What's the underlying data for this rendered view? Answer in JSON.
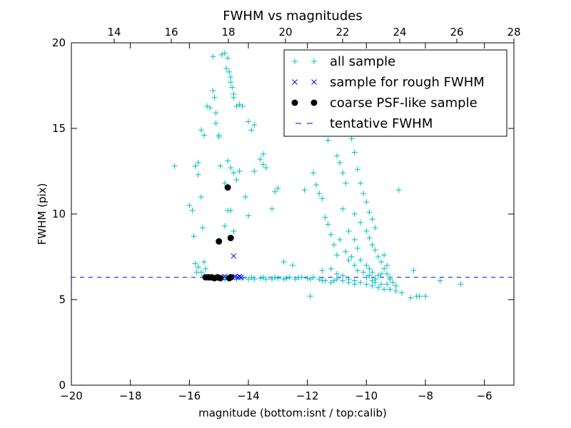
{
  "chart_data": {
    "type": "scatter",
    "title": "FWHM vs magnitudes",
    "xlabel": "magnitude (bottom:isnt / top:calib)",
    "ylabel": "FWHM (pix)",
    "xlim": [
      -20,
      -5
    ],
    "ylim": [
      0,
      20
    ],
    "x_ticks": [
      "−20",
      "−18",
      "−16",
      "−14",
      "−12",
      "−10",
      "−8",
      "−6"
    ],
    "y_ticks": [
      "0",
      "5",
      "10",
      "15",
      "20"
    ],
    "top_axis": {
      "xlim": [
        12.5,
        28
      ],
      "ticks": [
        "14",
        "16",
        "18",
        "20",
        "22",
        "24",
        "26",
        "28"
      ]
    },
    "grid": false,
    "legend_position": "top-right",
    "colors": {
      "all": "#00bfbf",
      "rough": "#0000ff",
      "coarse": "#000000",
      "tentative": "#0000ff"
    },
    "tentative_fwhm": 6.3,
    "series": [
      {
        "name": "all sample",
        "marker": "plus",
        "points": [
          [
            -16.5,
            12.8
          ],
          [
            -16.0,
            10.5
          ],
          [
            -15.9,
            10.2
          ],
          [
            -15.85,
            8.7
          ],
          [
            -15.8,
            7.1
          ],
          [
            -15.75,
            6.6
          ],
          [
            -15.7,
            6.9
          ],
          [
            -15.6,
            6.6
          ],
          [
            -15.5,
            6.4
          ],
          [
            -15.4,
            6.3
          ],
          [
            -15.8,
            12.8
          ],
          [
            -15.7,
            12.3
          ],
          [
            -15.7,
            13.0
          ],
          [
            -15.6,
            14.9
          ],
          [
            -15.5,
            14.6
          ],
          [
            -15.6,
            11.0
          ],
          [
            -15.55,
            9.2
          ],
          [
            -15.5,
            7.2
          ],
          [
            -15.45,
            6.8
          ],
          [
            -15.4,
            16.3
          ],
          [
            -15.3,
            16.2
          ],
          [
            -15.2,
            19.2
          ],
          [
            -15.2,
            17.2
          ],
          [
            -15.15,
            16.8
          ],
          [
            -15.1,
            15.9
          ],
          [
            -15.1,
            15.3
          ],
          [
            -15.0,
            14.6
          ],
          [
            -15.0,
            14.5
          ],
          [
            -14.95,
            12.8
          ],
          [
            -14.9,
            19.3
          ],
          [
            -14.8,
            19.4
          ],
          [
            -14.7,
            19.1
          ],
          [
            -14.75,
            18.5
          ],
          [
            -14.65,
            18.3
          ],
          [
            -14.6,
            18.0
          ],
          [
            -14.6,
            17.7
          ],
          [
            -14.55,
            17.4
          ],
          [
            -14.5,
            17.0
          ],
          [
            -14.5,
            16.8
          ],
          [
            -14.4,
            16.3
          ],
          [
            -14.3,
            16.4
          ],
          [
            -14.2,
            16.3
          ],
          [
            -14.7,
            13.1
          ],
          [
            -14.6,
            12.7
          ],
          [
            -14.5,
            12.4
          ],
          [
            -14.8,
            11.8
          ],
          [
            -14.7,
            10.2
          ],
          [
            -14.6,
            10.2
          ],
          [
            -14.8,
            9.3
          ],
          [
            -14.5,
            9.0
          ],
          [
            -14.4,
            12.0
          ],
          [
            -14.3,
            12.5
          ],
          [
            -14.0,
            15.4
          ],
          [
            -13.9,
            14.9
          ],
          [
            -13.8,
            12.5
          ],
          [
            -13.6,
            13.2
          ],
          [
            -13.5,
            12.9
          ],
          [
            -13.4,
            12.7
          ],
          [
            -14.1,
            11.0
          ],
          [
            -14.0,
            9.9
          ],
          [
            -13.8,
            15.2
          ],
          [
            -13.5,
            13.5
          ],
          [
            -13.2,
            10.3
          ],
          [
            -13.1,
            11.3
          ],
          [
            -13.0,
            11.5
          ],
          [
            -12.8,
            7.2
          ],
          [
            -12.5,
            7.0
          ],
          [
            -12.1,
            11.4
          ],
          [
            -11.9,
            5.2
          ],
          [
            -11.5,
            6.7
          ],
          [
            -11.8,
            12.4
          ],
          [
            -11.7,
            11.7
          ],
          [
            -11.6,
            11.2
          ],
          [
            -11.5,
            10.9
          ],
          [
            -11.4,
            9.8
          ],
          [
            -11.3,
            9.4
          ],
          [
            -11.2,
            8.8
          ],
          [
            -11.1,
            8.2
          ],
          [
            -11.0,
            7.6
          ],
          [
            -11.5,
            14.8
          ],
          [
            -11.3,
            14.3
          ],
          [
            -11.0,
            13.4
          ],
          [
            -10.9,
            13.0
          ],
          [
            -10.8,
            12.4
          ],
          [
            -10.7,
            11.8
          ],
          [
            -10.8,
            17.5
          ],
          [
            -10.9,
            16.8
          ],
          [
            -10.7,
            16.2
          ],
          [
            -10.6,
            15.6
          ],
          [
            -10.5,
            15.0
          ],
          [
            -10.5,
            14.4
          ],
          [
            -10.4,
            13.6
          ],
          [
            -10.3,
            12.6
          ],
          [
            -10.2,
            11.8
          ],
          [
            -10.1,
            11.2
          ],
          [
            -10.0,
            10.7
          ],
          [
            -9.9,
            10.1
          ],
          [
            -9.8,
            9.7
          ],
          [
            -9.7,
            9.2
          ],
          [
            -10.4,
            10.0
          ],
          [
            -10.2,
            9.5
          ],
          [
            -10.0,
            9.0
          ],
          [
            -9.9,
            8.6
          ],
          [
            -9.8,
            8.2
          ],
          [
            -9.7,
            7.9
          ],
          [
            -9.6,
            7.5
          ],
          [
            -9.5,
            7.2
          ],
          [
            -9.4,
            6.8
          ],
          [
            -9.3,
            6.5
          ],
          [
            -9.2,
            6.2
          ],
          [
            -10.8,
            10.3
          ],
          [
            -10.6,
            9.0
          ],
          [
            -10.4,
            8.5
          ],
          [
            -10.3,
            8.0
          ],
          [
            -10.5,
            7.5
          ],
          [
            -10.2,
            7.3
          ],
          [
            -10.0,
            7.0
          ],
          [
            -9.9,
            6.8
          ],
          [
            -9.8,
            6.6
          ],
          [
            -9.6,
            6.4
          ],
          [
            -10.9,
            8.5
          ],
          [
            -10.7,
            7.8
          ],
          [
            -10.6,
            7.3
          ],
          [
            -10.4,
            7.0
          ],
          [
            -10.3,
            6.7
          ],
          [
            -10.1,
            6.6
          ],
          [
            -10.0,
            6.3
          ],
          [
            -9.8,
            6.1
          ],
          [
            -9.7,
            6.0
          ],
          [
            -9.5,
            5.9
          ],
          [
            -11.2,
            6.8
          ],
          [
            -11.0,
            6.5
          ],
          [
            -10.8,
            6.4
          ],
          [
            -10.6,
            6.2
          ],
          [
            -10.4,
            6.1
          ],
          [
            -10.2,
            6.0
          ],
          [
            -10.0,
            5.9
          ],
          [
            -9.8,
            5.8
          ],
          [
            -9.6,
            5.7
          ],
          [
            -9.4,
            5.6
          ],
          [
            -9.2,
            5.6
          ],
          [
            -9.0,
            5.5
          ],
          [
            -8.8,
            5.4
          ],
          [
            -8.5,
            5.1
          ],
          [
            -8.3,
            5.2
          ],
          [
            -8.2,
            5.2
          ],
          [
            -8.0,
            5.2
          ],
          [
            -8.4,
            6.7
          ],
          [
            -7.5,
            6.1
          ],
          [
            -6.8,
            5.9
          ],
          [
            -8.9,
            11.4
          ],
          [
            -9.4,
            7.6
          ],
          [
            -9.3,
            7.0
          ],
          [
            -9.2,
            6.3
          ],
          [
            -9.1,
            6.0
          ],
          [
            -9.0,
            5.8
          ],
          [
            -9.3,
            5.9
          ],
          [
            -9.5,
            6.5
          ],
          [
            -9.7,
            6.2
          ],
          [
            -9.9,
            6.4
          ],
          [
            -14.2,
            6.25
          ],
          [
            -14.0,
            6.2
          ],
          [
            -13.8,
            6.2
          ],
          [
            -13.6,
            6.25
          ],
          [
            -13.4,
            6.2
          ],
          [
            -13.2,
            6.2
          ],
          [
            -13.0,
            6.25
          ],
          [
            -12.8,
            6.2
          ],
          [
            -12.6,
            6.3
          ],
          [
            -12.4,
            6.2
          ],
          [
            -12.2,
            6.3
          ],
          [
            -12.0,
            6.25
          ],
          [
            -11.8,
            6.3
          ],
          [
            -11.6,
            6.2
          ],
          [
            -11.4,
            6.1
          ],
          [
            -11.2,
            6.0
          ],
          [
            -11.0,
            6.2
          ],
          [
            -10.8,
            6.1
          ],
          [
            -10.6,
            6.0
          ],
          [
            -10.4,
            5.9
          ],
          [
            -14.6,
            6.3
          ],
          [
            -14.4,
            6.2
          ],
          [
            -13.9,
            6.3
          ],
          [
            -13.5,
            6.3
          ],
          [
            -13.1,
            6.3
          ],
          [
            -12.7,
            6.25
          ],
          [
            -12.3,
            6.3
          ],
          [
            -11.9,
            6.2
          ],
          [
            -11.5,
            6.1
          ],
          [
            -11.1,
            6.1
          ],
          [
            -15.3,
            6.25
          ],
          [
            -15.2,
            6.3
          ],
          [
            -15.0,
            6.25
          ],
          [
            -14.9,
            6.3
          ],
          [
            -14.8,
            6.2
          ]
        ]
      },
      {
        "name": "sample for rough FWHM",
        "marker": "x",
        "points": [
          [
            -14.5,
            7.55
          ],
          [
            -15.3,
            6.3
          ],
          [
            -15.1,
            6.3
          ],
          [
            -14.9,
            6.3
          ],
          [
            -14.8,
            6.35
          ],
          [
            -14.7,
            6.3
          ],
          [
            -14.55,
            6.3
          ],
          [
            -14.45,
            6.35
          ],
          [
            -14.35,
            6.3
          ],
          [
            -14.3,
            6.35
          ],
          [
            -14.25,
            6.3
          ]
        ]
      },
      {
        "name": "coarse PSF-like sample",
        "marker": "dot",
        "points": [
          [
            -14.7,
            11.55
          ],
          [
            -14.6,
            8.6
          ],
          [
            -15.0,
            8.4
          ],
          [
            -15.45,
            6.3
          ],
          [
            -15.35,
            6.3
          ],
          [
            -15.25,
            6.3
          ],
          [
            -15.15,
            6.25
          ],
          [
            -15.05,
            6.3
          ],
          [
            -14.95,
            6.25
          ],
          [
            -14.65,
            6.25
          ],
          [
            -14.6,
            6.3
          ]
        ]
      }
    ],
    "legend": [
      {
        "label": "all sample",
        "marker": "plus"
      },
      {
        "label": "sample for rough FWHM",
        "marker": "x"
      },
      {
        "label": "coarse PSF-like sample",
        "marker": "dot"
      },
      {
        "label": "tentative FWHM",
        "marker": "dash"
      }
    ]
  }
}
